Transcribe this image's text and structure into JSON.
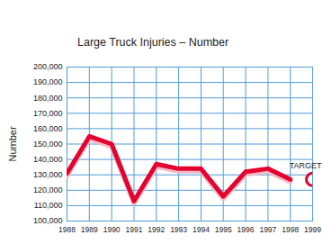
{
  "chart_data": {
    "type": "line",
    "title": "Large Truck Injuries – Number",
    "ylabel": "Number",
    "x": [
      1988,
      1989,
      1990,
      1991,
      1992,
      1993,
      1994,
      1995,
      1996,
      1997,
      1998,
      1999
    ],
    "values": [
      131000,
      155000,
      150000,
      113000,
      137000,
      134000,
      134000,
      116000,
      132000,
      134000,
      127000,
      null
    ],
    "color": "#e4032e",
    "line_style": "solid",
    "target": {
      "x": 1999,
      "value": 127000,
      "label": "TARGET",
      "marker": "circle"
    },
    "xlim": [
      1988,
      1999
    ],
    "xticks": [
      1988,
      1989,
      1990,
      1991,
      1992,
      1993,
      1994,
      1995,
      1996,
      1997,
      1998,
      1999
    ],
    "ylim": [
      100000,
      200000
    ],
    "yticks": [
      {
        "value": 100000,
        "label": "100,000"
      },
      {
        "value": 110000,
        "label": "110,000"
      },
      {
        "value": 120000,
        "label": "120,000"
      },
      {
        "value": 130000,
        "label": "130,000"
      },
      {
        "value": 140000,
        "label": "140,000"
      },
      {
        "value": 150000,
        "label": "150,000"
      },
      {
        "value": 160000,
        "label": "160,000"
      },
      {
        "value": 170000,
        "label": "170,000"
      },
      {
        "value": 180000,
        "label": "180,000"
      },
      {
        "value": 190000,
        "label": "190,000"
      },
      {
        "value": 200000,
        "label": "200,000"
      }
    ],
    "grid": true
  }
}
